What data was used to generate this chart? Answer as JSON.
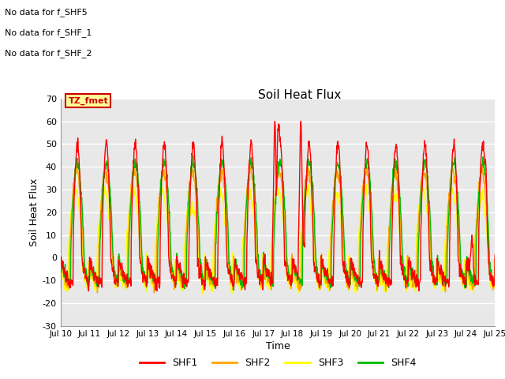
{
  "title": "Soil Heat Flux",
  "xlabel": "Time",
  "ylabel": "Soil Heat Flux",
  "ylim": [
    -30,
    70
  ],
  "yticks": [
    -30,
    -20,
    -10,
    0,
    10,
    20,
    30,
    40,
    50,
    60,
    70
  ],
  "x_tick_labels": [
    "Jul 10",
    "Jul 11",
    "Jul 12",
    "Jul 13",
    "Jul 14",
    "Jul 15",
    "Jul 16",
    "Jul 17",
    "Jul 18",
    "Jul 19",
    "Jul 20",
    "Jul 21",
    "Jul 22",
    "Jul 23",
    "Jul 24",
    "Jul 25"
  ],
  "colors": {
    "SHF1": "#ff0000",
    "SHF2": "#ffa500",
    "SHF3": "#ffff00",
    "SHF4": "#00bb00"
  },
  "legend_labels": [
    "SHF1",
    "SHF2",
    "SHF3",
    "SHF4"
  ],
  "no_data_texts": [
    "No data for f_SHF5",
    "No data for f_SHF_1",
    "No data for f_SHF_2"
  ],
  "annotation_text": "TZ_fmet",
  "annotation_color": "#cc0000",
  "annotation_bg": "#ffff99",
  "plot_bg": "#e8e8e8",
  "fig_bg": "#ffffff",
  "grid_color": "#ffffff",
  "n_days": 15,
  "pts_per_day": 96,
  "seed": 42
}
